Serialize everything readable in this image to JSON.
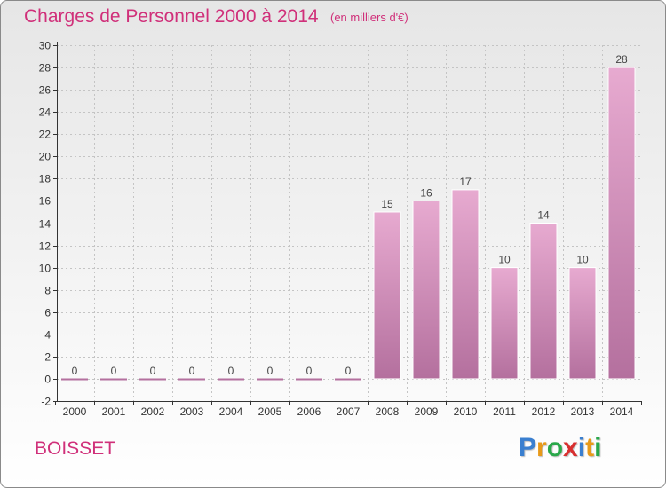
{
  "header": {
    "title": "Charges de Personnel 2000 à 2014",
    "unit": "(en milliers d'€)"
  },
  "footer": {
    "commune": "BOISSET",
    "logo_letters": [
      "P",
      "r",
      "o",
      "x",
      "i",
      "t",
      "i"
    ],
    "logo_colors": [
      "#3a7fd0",
      "#e89a1a",
      "#2aa84a",
      "#d83030",
      "#3a7fd0",
      "#e89a1a",
      "#2aa84a"
    ]
  },
  "colors": {
    "bar_top": "#e7aad0",
    "bar_bottom": "#b4709e",
    "bar_edge": "#ffffff",
    "axis": "#333333",
    "grid": "#c4c4c4",
    "title": "#d0307a"
  },
  "chart_data": {
    "type": "bar",
    "categories": [
      "2000",
      "2001",
      "2002",
      "2003",
      "2004",
      "2005",
      "2006",
      "2007",
      "2008",
      "2009",
      "2010",
      "2011",
      "2012",
      "2013",
      "2014"
    ],
    "values": [
      0,
      0,
      0,
      0,
      0,
      0,
      0,
      0,
      15,
      16,
      17,
      10,
      14,
      10,
      28
    ],
    "title": "Charges de Personnel 2000 à 2014",
    "ylim": [
      -2,
      30
    ],
    "yticks": [
      -2,
      0,
      2,
      4,
      6,
      8,
      10,
      12,
      14,
      16,
      18,
      20,
      22,
      24,
      26,
      28,
      30
    ],
    "grid": true
  }
}
